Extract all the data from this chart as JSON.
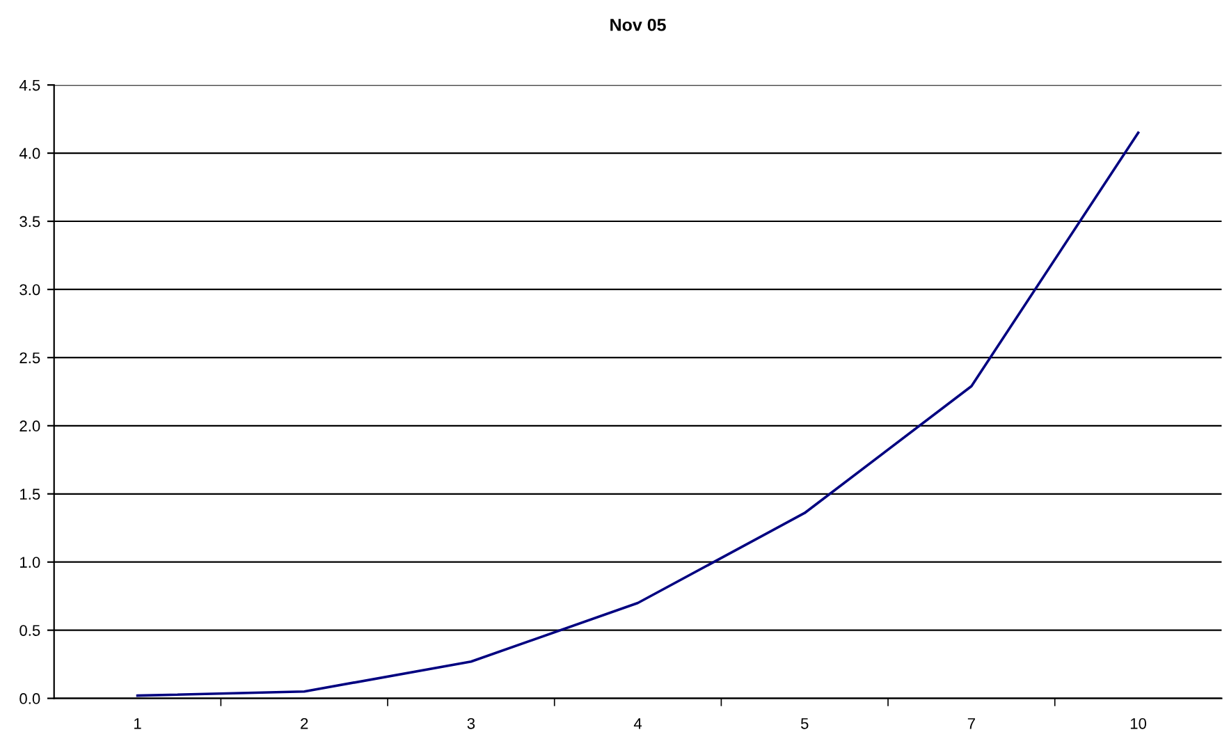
{
  "chart_data": {
    "type": "line",
    "title": "Nov 05",
    "categories": [
      "1",
      "2",
      "3",
      "4",
      "5",
      "7",
      "10"
    ],
    "series": [
      {
        "color": "#000080",
        "values": [
          0.02,
          0.05,
          0.27,
          0.7,
          1.36,
          2.29,
          4.15
        ]
      }
    ],
    "ylim": [
      0,
      4.5
    ],
    "yticks": [
      {
        "value": 0,
        "label": "0.0"
      },
      {
        "value": 0.5,
        "label": "0.5"
      },
      {
        "value": 1,
        "label": "1.0"
      },
      {
        "value": 1.5,
        "label": "1.5"
      },
      {
        "value": 2,
        "label": "2.0"
      },
      {
        "value": 2.5,
        "label": "2.5"
      },
      {
        "value": 3,
        "label": "3.0"
      },
      {
        "value": 3.5,
        "label": "3.5"
      },
      {
        "value": 4,
        "label": "4.0"
      },
      {
        "value": 4.5,
        "label": "4.5"
      }
    ],
    "grid": "y",
    "marker": "none",
    "line_style": "solid"
  }
}
